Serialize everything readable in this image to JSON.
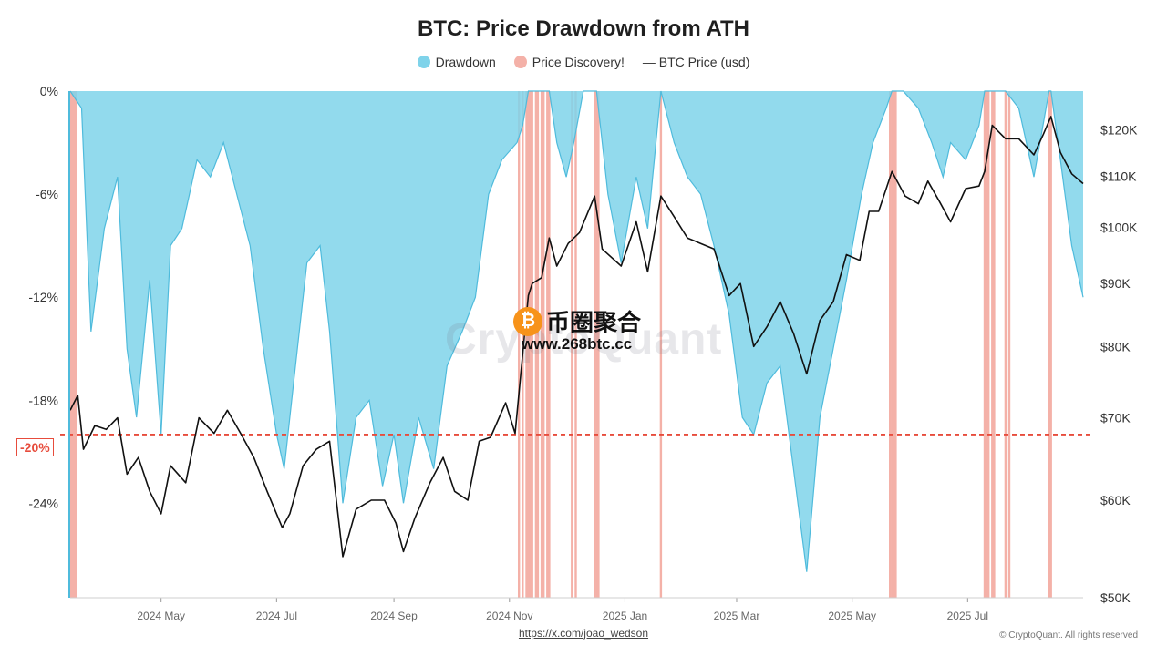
{
  "title": "BTC: Price Drawdown from ATH",
  "legend": {
    "drawdown": "Drawdown",
    "discovery": "Price Discovery!",
    "price": "— BTC Price (usd)"
  },
  "colors": {
    "drawdown": "#7fd3ea",
    "drawdown_line": "#4fbbdc",
    "discovery": "#f4b1a8",
    "price": "#111111",
    "threshold": "#e74c3c"
  },
  "threshold_label": "-20%",
  "source": "https://x.com/joao_wedson",
  "copyright": "© CryptoQuant. All rights reserved",
  "watermark": "CryptoQuant",
  "brand": {
    "coin": "₿",
    "name": "币圈聚合",
    "url": "www.268btc.cc"
  },
  "chart_data": {
    "type": "area",
    "title": "BTC: Price Drawdown from ATH",
    "x_range": [
      "2024-03-14",
      "2025-08-31"
    ],
    "x_ticks": [
      "2024 May",
      "2024 Jul",
      "2024 Sep",
      "2024 Nov",
      "2025 Jan",
      "2025 Mar",
      "2025 May",
      "2025 Jul"
    ],
    "y_left": {
      "label": "",
      "ticks": [
        "0%",
        "-6%",
        "-12%",
        "-18%",
        "-24%"
      ],
      "range": [
        -29.5,
        0
      ]
    },
    "y_right": {
      "label": "",
      "scale": "log",
      "ticks": [
        "$120K",
        "$110K",
        "$100K",
        "$90K",
        "$80K",
        "$70K",
        "$60K",
        "$50K"
      ],
      "range": [
        50000,
        129000
      ]
    },
    "threshold": -20,
    "series": [
      {
        "name": "Drawdown",
        "axis": "left",
        "x": [
          "2024-03-14",
          "2024-03-20",
          "2024-03-25",
          "2024-04-01",
          "2024-04-08",
          "2024-04-13",
          "2024-04-18",
          "2024-04-25",
          "2024-05-01",
          "2024-05-06",
          "2024-05-12",
          "2024-05-20",
          "2024-05-27",
          "2024-06-03",
          "2024-06-10",
          "2024-06-17",
          "2024-06-24",
          "2024-07-01",
          "2024-07-05",
          "2024-07-10",
          "2024-07-17",
          "2024-07-24",
          "2024-07-29",
          "2024-08-05",
          "2024-08-12",
          "2024-08-19",
          "2024-08-26",
          "2024-09-01",
          "2024-09-06",
          "2024-09-14",
          "2024-09-22",
          "2024-09-29",
          "2024-10-07",
          "2024-10-14",
          "2024-10-21",
          "2024-10-28",
          "2024-11-05",
          "2024-11-08",
          "2024-11-11",
          "2024-11-13",
          "2024-11-18",
          "2024-11-22",
          "2024-11-26",
          "2024-12-01",
          "2024-12-05",
          "2024-12-10",
          "2024-12-17",
          "2024-12-23",
          "2024-12-30",
          "2025-01-07",
          "2025-01-13",
          "2025-01-20",
          "2025-01-27",
          "2025-02-03",
          "2025-02-10",
          "2025-02-17",
          "2025-02-25",
          "2025-03-04",
          "2025-03-10",
          "2025-03-17",
          "2025-03-24",
          "2025-03-31",
          "2025-04-07",
          "2025-04-14",
          "2025-04-21",
          "2025-04-28",
          "2025-05-06",
          "2025-05-12",
          "2025-05-19",
          "2025-05-22",
          "2025-05-28",
          "2025-06-05",
          "2025-06-12",
          "2025-06-18",
          "2025-06-22",
          "2025-06-30",
          "2025-07-07",
          "2025-07-10",
          "2025-07-14",
          "2025-07-21",
          "2025-07-28",
          "2025-08-05",
          "2025-08-13",
          "2025-08-14",
          "2025-08-19",
          "2025-08-25",
          "2025-08-31"
        ],
        "values": [
          0,
          -1,
          -14,
          -8,
          -5,
          -15,
          -19,
          -11,
          -20,
          -9,
          -8,
          -4,
          -5,
          -3,
          -6,
          -9,
          -15,
          -20,
          -22,
          -17,
          -10,
          -9,
          -14,
          -24,
          -19,
          -18,
          -23,
          -20,
          -24,
          -19,
          -22,
          -16,
          -14,
          -12,
          -6,
          -4,
          -3,
          -2,
          0,
          0,
          0,
          0,
          -3,
          -5,
          -3,
          0,
          0,
          -6,
          -10,
          -5,
          -8,
          0,
          -3,
          -5,
          -6,
          -9,
          -13,
          -19,
          -20,
          -17,
          -16,
          -22,
          -28,
          -19,
          -15,
          -11,
          -6,
          -3,
          -1,
          0,
          0,
          -1,
          -3,
          -5,
          -3,
          -4,
          -2,
          0,
          0,
          0,
          -1,
          -5,
          0,
          0,
          -4,
          -9,
          -12
        ]
      },
      {
        "name": "BTC Price (usd)",
        "axis": "right",
        "x": [
          "2024-03-14",
          "2024-03-18",
          "2024-03-21",
          "2024-03-27",
          "2024-04-02",
          "2024-04-08",
          "2024-04-13",
          "2024-04-19",
          "2024-04-25",
          "2024-05-01",
          "2024-05-06",
          "2024-05-14",
          "2024-05-21",
          "2024-05-29",
          "2024-06-05",
          "2024-06-12",
          "2024-06-19",
          "2024-06-26",
          "2024-07-04",
          "2024-07-08",
          "2024-07-15",
          "2024-07-22",
          "2024-07-29",
          "2024-08-05",
          "2024-08-12",
          "2024-08-20",
          "2024-08-27",
          "2024-09-02",
          "2024-09-06",
          "2024-09-12",
          "2024-09-20",
          "2024-09-27",
          "2024-10-03",
          "2024-10-10",
          "2024-10-16",
          "2024-10-22",
          "2024-10-30",
          "2024-11-04",
          "2024-11-07",
          "2024-11-11",
          "2024-11-13",
          "2024-11-18",
          "2024-11-22",
          "2024-11-26",
          "2024-12-02",
          "2024-12-08",
          "2024-12-16",
          "2024-12-20",
          "2024-12-30",
          "2025-01-07",
          "2025-01-13",
          "2025-01-20",
          "2025-01-27",
          "2025-02-03",
          "2025-02-10",
          "2025-02-17",
          "2025-02-25",
          "2025-03-03",
          "2025-03-10",
          "2025-03-17",
          "2025-03-24",
          "2025-03-31",
          "2025-04-07",
          "2025-04-14",
          "2025-04-21",
          "2025-04-28",
          "2025-05-05",
          "2025-05-10",
          "2025-05-15",
          "2025-05-22",
          "2025-05-29",
          "2025-06-05",
          "2025-06-10",
          "2025-06-16",
          "2025-06-22",
          "2025-06-30",
          "2025-07-07",
          "2025-07-10",
          "2025-07-14",
          "2025-07-21",
          "2025-07-28",
          "2025-08-05",
          "2025-08-10",
          "2025-08-14",
          "2025-08-19",
          "2025-08-25",
          "2025-08-31"
        ],
        "values": [
          71000,
          73000,
          66000,
          69000,
          68500,
          70000,
          63000,
          65000,
          61000,
          58500,
          64000,
          62000,
          70000,
          68000,
          71000,
          68000,
          65000,
          61000,
          57000,
          58500,
          64000,
          66000,
          67000,
          54000,
          59000,
          60000,
          60000,
          57500,
          54500,
          58000,
          62000,
          65000,
          61000,
          60000,
          67000,
          67500,
          72000,
          68000,
          76000,
          88000,
          90000,
          91000,
          98000,
          93000,
          97000,
          99000,
          106000,
          96000,
          93000,
          101000,
          92000,
          106000,
          102000,
          98000,
          97000,
          96000,
          88000,
          90000,
          80000,
          83000,
          87000,
          82000,
          76000,
          84000,
          87000,
          95000,
          94000,
          103000,
          103000,
          111000,
          106000,
          104500,
          109000,
          105000,
          101000,
          107500,
          108000,
          111000,
          121000,
          118000,
          118000,
          114500,
          119000,
          123000,
          115000,
          110500,
          108500
        ]
      }
    ],
    "price_discovery_dates": [
      "2024-03-14",
      "2024-03-15",
      "2024-03-16",
      "2024-03-17",
      "2024-11-06",
      "2024-11-08",
      "2024-11-10",
      "2024-11-11",
      "2024-11-12",
      "2024-11-13",
      "2024-11-15",
      "2024-11-16",
      "2024-11-18",
      "2024-11-19",
      "2024-11-21",
      "2024-11-22",
      "2024-12-04",
      "2024-12-06",
      "2024-12-16",
      "2024-12-17",
      "2024-12-18",
      "2025-01-20",
      "2025-05-21",
      "2025-05-22",
      "2025-05-23",
      "2025-05-24",
      "2025-07-10",
      "2025-07-11",
      "2025-07-12",
      "2025-07-14",
      "2025-07-15",
      "2025-07-21",
      "2025-07-23",
      "2025-08-13",
      "2025-08-14"
    ]
  }
}
